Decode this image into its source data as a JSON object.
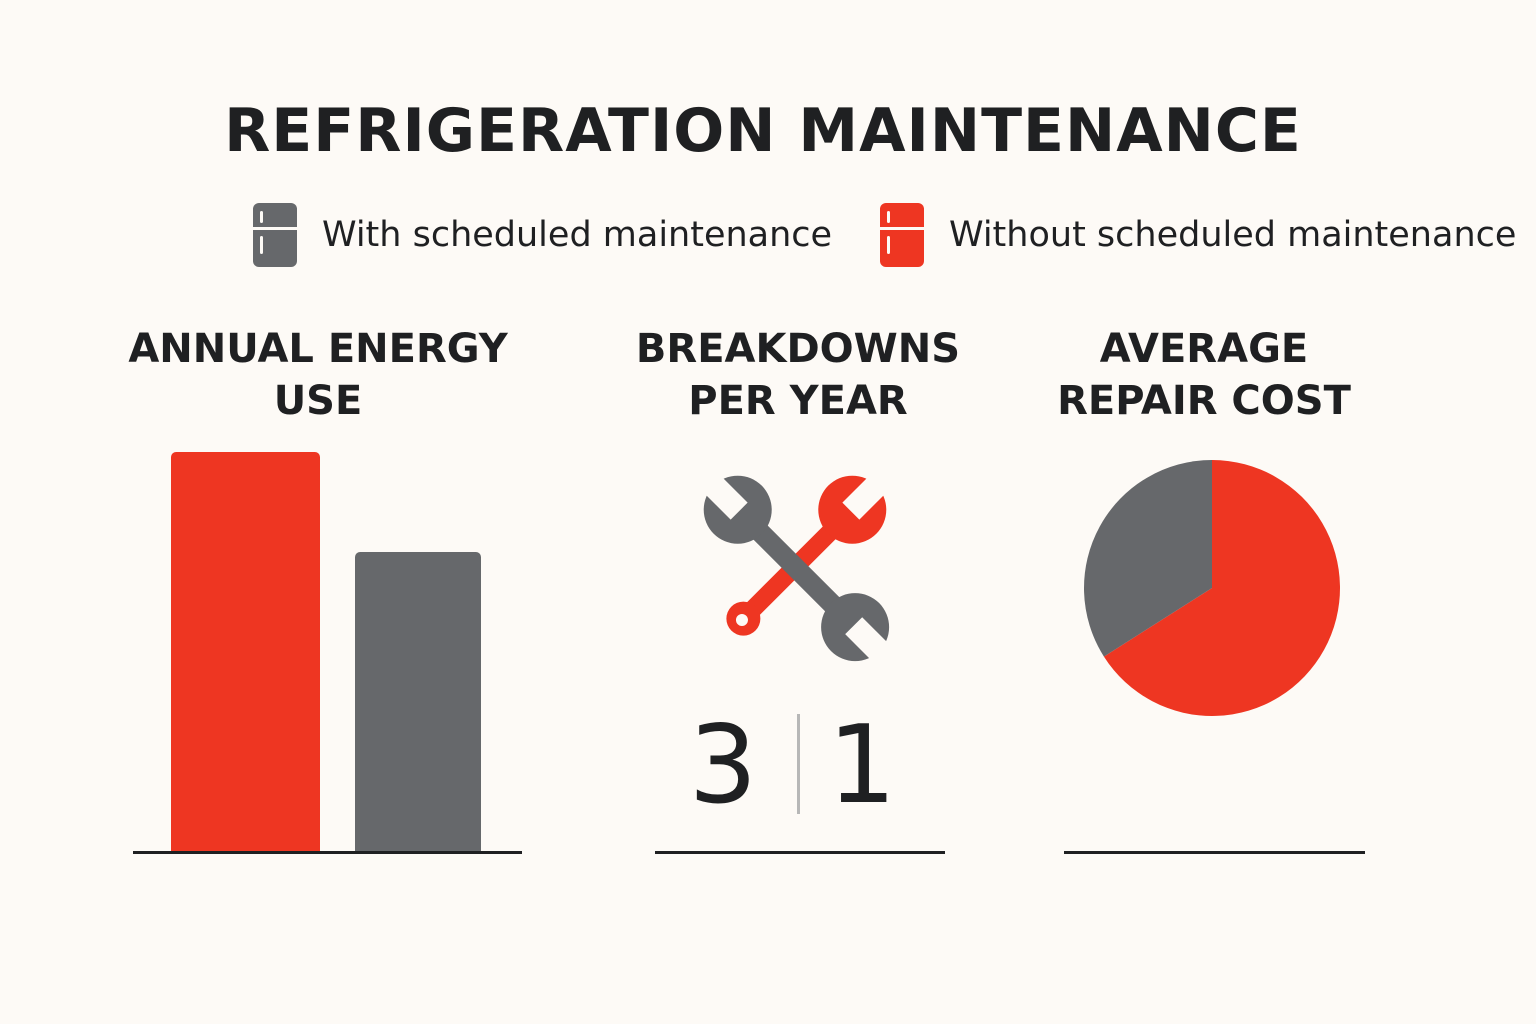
{
  "title": "REFRIGERATION MAINTENANCE",
  "colors": {
    "with": "#66686b",
    "without": "#ee3622",
    "text": "#1f2022",
    "background": "#fdfaf6"
  },
  "legend": {
    "with": {
      "label": "With scheduled maintenance",
      "icon": "refrigerator-icon"
    },
    "without": {
      "label": "Without scheduled maintenance",
      "icon": "refrigerator-icon"
    }
  },
  "panels": {
    "energy": {
      "title_lines": [
        "ANNUAL ENERGY",
        "USE"
      ]
    },
    "breakdowns": {
      "title_lines": [
        "BREAKDOWNS",
        "PER YEAR"
      ],
      "icon": "crossed-wrenches-icon"
    },
    "repair": {
      "title_lines": [
        "AVERAGE",
        "REPAIR COST"
      ]
    }
  },
  "chart_data": [
    {
      "type": "bar",
      "title": "ANNUAL ENERGY USE",
      "categories": [
        "Without scheduled maintenance",
        "With scheduled maintenance"
      ],
      "values": [
        100,
        75
      ],
      "value_unit": "relative (no axis or labels shown)",
      "ylim": [
        0,
        100
      ],
      "grid": false,
      "colors": [
        "#ee3622",
        "#66686b"
      ]
    },
    {
      "type": "table",
      "title": "BREAKDOWNS PER YEAR",
      "categories": [
        "Without scheduled maintenance",
        "With scheduled maintenance"
      ],
      "values": [
        3,
        1
      ],
      "colors": [
        "#ee3622",
        "#66686b"
      ]
    },
    {
      "type": "pie",
      "title": "AVERAGE REPAIR COST",
      "categories": [
        "Without scheduled maintenance",
        "With scheduled maintenance"
      ],
      "values": [
        66,
        34
      ],
      "value_unit": "percent share (estimated)",
      "colors": [
        "#ee3622",
        "#66686b"
      ]
    }
  ]
}
